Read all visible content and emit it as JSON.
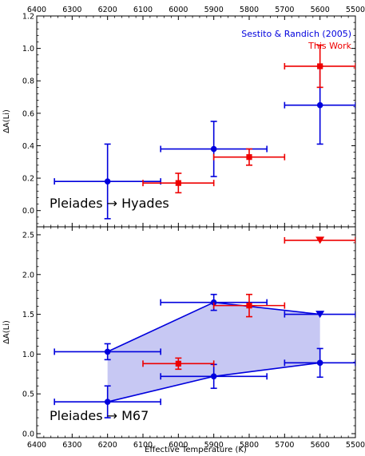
{
  "chart_data": [
    {
      "type": "scatter",
      "panel_label": "Pleiades → Hyades",
      "xlabel": "",
      "ylabel": "ΔA(Li)",
      "xlim": [
        6400,
        5500
      ],
      "ylim": [
        1.2,
        -0.1
      ],
      "x_ticks": [
        6400,
        6300,
        6200,
        6100,
        6000,
        5900,
        5800,
        5700,
        5600,
        5500
      ],
      "x_tick_labels": [
        "6400",
        "6300",
        "6200",
        "6100",
        "6000",
        "5900",
        "5800",
        "5700",
        "5600",
        "5500"
      ],
      "y_ticks": [
        0.0,
        0.2,
        0.4,
        0.6,
        0.8,
        1.0,
        1.2
      ],
      "y_tick_labels": [
        "0.0",
        "0.2",
        "0.4",
        "0.6",
        "0.8",
        "1.0",
        "1.2"
      ],
      "top_axis_labels": true,
      "bottom_axis_labels": false,
      "legend": {
        "placement": "top-right",
        "entries": [
          {
            "label": "Sestito & Randich (2005)",
            "color": "#0000dd"
          },
          {
            "label": "This Work",
            "color": "#ee0000"
          }
        ]
      },
      "series": [
        {
          "name": "Sestito & Randich (2005)",
          "color": "#0000dd",
          "marker": "circle",
          "points": [
            {
              "x": 6200,
              "y": 0.18,
              "xerr": 150,
              "yerr": [
                0.23,
                0.23
              ]
            },
            {
              "x": 5900,
              "y": 0.38,
              "xerr": 150,
              "yerr": [
                0.17,
                0.17
              ]
            },
            {
              "x": 5600,
              "y": 0.65,
              "xerr": 100,
              "yerr": [
                0.24,
                0.24
              ]
            }
          ]
        },
        {
          "name": "This Work",
          "color": "#ee0000",
          "marker": "square",
          "points": [
            {
              "x": 6000,
              "y": 0.17,
              "xerr": 100,
              "yerr": [
                0.06,
                0.06
              ]
            },
            {
              "x": 5800,
              "y": 0.33,
              "xerr": 100,
              "yerr": [
                0.05,
                0.05
              ]
            },
            {
              "x": 5600,
              "y": 0.89,
              "xerr": 100,
              "yerr": [
                0.13,
                0.13
              ]
            }
          ]
        }
      ]
    },
    {
      "type": "scatter",
      "panel_label": "Pleiades → M67",
      "xlabel": "Effective Temperature (K)",
      "ylabel": "ΔA(Li)",
      "xlim": [
        6400,
        5500
      ],
      "ylim": [
        2.6,
        -0.05
      ],
      "x_ticks": [
        6400,
        6300,
        6200,
        6100,
        6000,
        5900,
        5800,
        5700,
        5600,
        5500
      ],
      "x_tick_labels": [
        "6400",
        "6300",
        "6200",
        "6100",
        "6000",
        "5900",
        "5800",
        "5700",
        "5600",
        "5500"
      ],
      "y_ticks": [
        0.0,
        0.5,
        1.0,
        1.5,
        2.0,
        2.5
      ],
      "y_tick_labels": [
        "0.0",
        "0.5",
        "1.0",
        "1.5",
        "2.0",
        "2.5"
      ],
      "top_axis_labels": false,
      "bottom_axis_labels": true,
      "shaded_region": {
        "color": "#c7c8f3",
        "polygon": [
          [
            6200,
            0.4
          ],
          [
            5900,
            0.72
          ],
          [
            5600,
            0.89
          ],
          [
            5600,
            1.5
          ],
          [
            5900,
            1.65
          ],
          [
            6200,
            1.03
          ]
        ]
      },
      "series": [
        {
          "name": "Sestito & Randich (2005)",
          "color": "#0000dd",
          "connect": true,
          "points": [
            {
              "x": 6200,
              "y": 0.4,
              "xerr": 150,
              "yerr": [
                0.2,
                0.2
              ],
              "marker": "circle"
            },
            {
              "x": 5900,
              "y": 0.72,
              "xerr": 150,
              "yerr": [
                0.15,
                0.15
              ],
              "marker": "circle"
            },
            {
              "x": 5600,
              "y": 0.89,
              "xerr": 100,
              "yerr": [
                0.18,
                0.18
              ],
              "marker": "circle"
            }
          ]
        },
        {
          "name": "Sestito & Randich (2005)",
          "color": "#0000dd",
          "connect": true,
          "points": [
            {
              "x": 6200,
              "y": 1.03,
              "xerr": 150,
              "yerr": [
                0.1,
                0.1
              ],
              "marker": "circle"
            },
            {
              "x": 5900,
              "y": 1.65,
              "xerr": 150,
              "yerr": [
                0.1,
                0.1
              ],
              "marker": "circle"
            },
            {
              "x": 5600,
              "y": 1.5,
              "xerr": 100,
              "yerr": [
                0,
                0
              ],
              "marker": "triangle-down"
            }
          ]
        },
        {
          "name": "This Work",
          "color": "#ee0000",
          "connect": false,
          "points": [
            {
              "x": 6000,
              "y": 0.88,
              "xerr": 100,
              "yerr": [
                0.07,
                0.07
              ],
              "marker": "square"
            },
            {
              "x": 5800,
              "y": 1.61,
              "xerr": 100,
              "yerr": [
                0.14,
                0.14
              ],
              "marker": "square"
            },
            {
              "x": 5600,
              "y": 2.43,
              "xerr": 100,
              "yerr": [
                0,
                0
              ],
              "marker": "triangle-down"
            }
          ]
        }
      ]
    }
  ]
}
